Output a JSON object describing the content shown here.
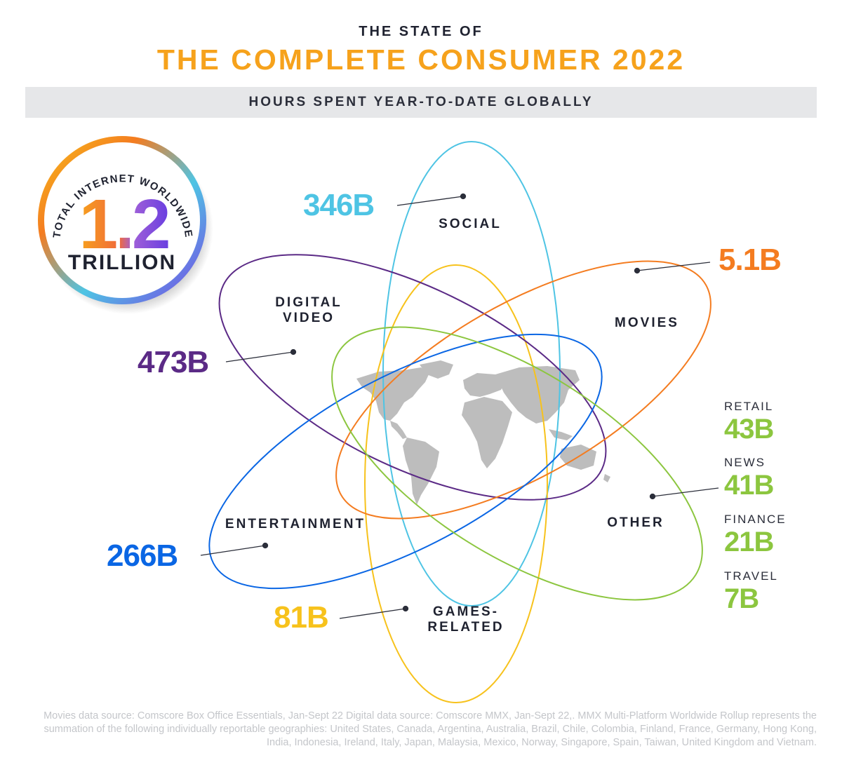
{
  "header": {
    "pre_title": "THE STATE OF",
    "title": "THE COMPLETE CONSUMER 2022",
    "subtitle": "HOURS SPENT YEAR-TO-DATE GLOBALLY"
  },
  "badge": {
    "arc_text": "TOTAL INTERNET WORLDWIDE",
    "number": "1.2",
    "unit": "TRILLION"
  },
  "categories": [
    {
      "key": "social",
      "label": "SOCIAL",
      "value": "346B",
      "color": "#4ec4e4"
    },
    {
      "key": "digital_video",
      "label": "DIGITAL\nVIDEO",
      "value": "473B",
      "color": "#5b2a86"
    },
    {
      "key": "movies",
      "label": "MOVIES",
      "value": "5.1B",
      "color": "#f47c20"
    },
    {
      "key": "entertainment",
      "label": "ENTERTAINMENT",
      "value": "266B",
      "color": "#0a66e4"
    },
    {
      "key": "games",
      "label": "GAMES-\nRELATED",
      "value": "81B",
      "color": "#f7c21c"
    },
    {
      "key": "other",
      "label": "OTHER",
      "value": "",
      "color": "#8cc63f"
    }
  ],
  "other_breakdown": [
    {
      "label": "RETAIL",
      "value": "43B"
    },
    {
      "label": "NEWS",
      "value": "41B"
    },
    {
      "label": "FINANCE",
      "value": "21B"
    },
    {
      "label": "TRAVEL",
      "value": "7B"
    }
  ],
  "footnote": "Movies data source: Comscore Box Office Essentials, Jan-Sept 22  Digital data source: Comscore MMX, Jan-Sept 22,. MMX Multi-Platform Worldwide Rollup represents the summation of the following individually reportable geographies: United States, Canada, Argentina, Australia, Brazil, Chile, Colombia, Finland, France, Germany, Hong Kong, India, Indonesia, Ireland, Italy, Japan, Malaysia, Mexico, Norway, Singapore, Spain, Taiwan, United Kingdom and Vietnam.",
  "icons": {
    "map": "world-map-icon"
  }
}
